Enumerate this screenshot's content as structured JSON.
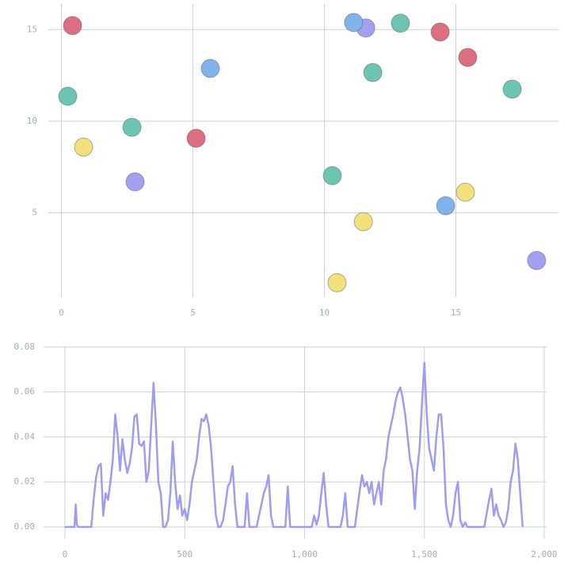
{
  "chart_data": [
    {
      "type": "scatter",
      "xlim": [
        -0.5,
        18.9
      ],
      "ylim": [
        0.4,
        16.4
      ],
      "xticks": [
        0,
        5,
        10,
        15
      ],
      "yticks": [
        5,
        10,
        15
      ],
      "grid": true,
      "series": [
        {
          "color": "#dc6e82",
          "x": [
            0.42,
            5.12,
            14.4,
            15.45
          ],
          "values": [
            15.22,
            9.07,
            14.87,
            13.48
          ]
        },
        {
          "color": "#6cc4b2",
          "x": [
            0.24,
            2.68,
            10.3,
            11.84,
            12.89,
            17.14
          ],
          "values": [
            11.36,
            9.67,
            7.03,
            12.66,
            15.35,
            11.75
          ]
        },
        {
          "color": "#f2e07a",
          "x": [
            0.84,
            10.48,
            11.48,
            15.36
          ],
          "values": [
            8.59,
            1.19,
            4.52,
            6.13
          ]
        },
        {
          "color": "#a3a0f2",
          "x": [
            2.8,
            11.57,
            18.07
          ],
          "values": [
            6.69,
            15.09,
            2.4
          ]
        },
        {
          "color": "#80b2ec",
          "x": [
            5.66,
            11.11,
            14.61
          ],
          "values": [
            12.88,
            15.39,
            5.39
          ]
        }
      ]
    },
    {
      "type": "line",
      "xlim": [
        -89,
        2010
      ],
      "ylim": [
        -0.0053,
        0.0803
      ],
      "xticks": [
        0,
        500,
        {
          "value": 1000,
          "label": "1,000"
        },
        {
          "value": 1500,
          "label": "1,500"
        },
        {
          "value": 2000,
          "label": "2,000"
        }
      ],
      "yticks": [
        {
          "value": 0,
          "label": "0.00"
        },
        {
          "value": 0.02,
          "label": "0.02"
        },
        {
          "value": 0.04,
          "label": "0.04"
        },
        {
          "value": 0.06,
          "label": "0.06"
        },
        {
          "value": 0.08,
          "label": "0.08"
        }
      ],
      "grid": true,
      "series": [
        {
          "color": "#a09cee",
          "x": [
            0,
            40,
            45,
            50,
            55,
            110,
            120,
            130,
            140,
            150,
            160,
            170,
            180,
            190,
            200,
            210,
            220,
            230,
            240,
            250,
            260,
            270,
            280,
            290,
            300,
            310,
            320,
            330,
            340,
            350,
            360,
            370,
            380,
            390,
            400,
            410,
            420,
            430,
            440,
            450,
            460,
            470,
            480,
            490,
            500,
            510,
            520,
            530,
            540,
            550,
            560,
            570,
            580,
            590,
            600,
            610,
            620,
            630,
            640,
            650,
            660,
            670,
            680,
            690,
            700,
            710,
            720,
            750,
            760,
            770,
            800,
            810,
            820,
            830,
            840,
            850,
            860,
            870,
            920,
            930,
            940,
            1030,
            1040,
            1050,
            1060,
            1070,
            1080,
            1090,
            1100,
            1150,
            1160,
            1170,
            1180,
            1210,
            1220,
            1230,
            1240,
            1250,
            1260,
            1270,
            1280,
            1290,
            1300,
            1310,
            1320,
            1330,
            1340,
            1350,
            1360,
            1370,
            1380,
            1390,
            1400,
            1410,
            1420,
            1430,
            1440,
            1450,
            1460,
            1470,
            1480,
            1490,
            1500,
            1510,
            1520,
            1530,
            1540,
            1550,
            1560,
            1570,
            1580,
            1590,
            1600,
            1610,
            1620,
            1630,
            1640,
            1650,
            1660,
            1670,
            1680,
            1750,
            1760,
            1770,
            1780,
            1790,
            1800,
            1810,
            1820,
            1830,
            1840,
            1850,
            1860,
            1870,
            1880,
            1890,
            1900,
            1910
          ],
          "values": [
            0,
            0,
            0.01,
            0.001,
            0,
            0,
            0.012,
            0.022,
            0.027,
            0.028,
            0.005,
            0.015,
            0.012,
            0.02,
            0.03,
            0.05,
            0.04,
            0.025,
            0.039,
            0.03,
            0.024,
            0.028,
            0.035,
            0.049,
            0.05,
            0.037,
            0.036,
            0.038,
            0.02,
            0.025,
            0.045,
            0.064,
            0.045,
            0.02,
            0.015,
            0,
            0,
            0.003,
            0.015,
            0.038,
            0.02,
            0.008,
            0.014,
            0.005,
            0.008,
            0.003,
            0.01,
            0.02,
            0.025,
            0.03,
            0.04,
            0.048,
            0.047,
            0.05,
            0.045,
            0.035,
            0.02,
            0.005,
            0,
            0,
            0.003,
            0.01,
            0.018,
            0.02,
            0.027,
            0.01,
            0,
            0,
            0.015,
            0,
            0,
            0.005,
            0.01,
            0.015,
            0.018,
            0.023,
            0.005,
            0,
            0,
            0.018,
            0,
            0,
            0.005,
            0.001,
            0.005,
            0.015,
            0.024,
            0.01,
            0,
            0,
            0.005,
            0.015,
            0,
            0,
            0.008,
            0.016,
            0.023,
            0.018,
            0.02,
            0.015,
            0.02,
            0.01,
            0.015,
            0.02,
            0.01,
            0.025,
            0.03,
            0.04,
            0.045,
            0.05,
            0.056,
            0.06,
            0.062,
            0.057,
            0.05,
            0.04,
            0.03,
            0.025,
            0.008,
            0.025,
            0.035,
            0.055,
            0.073,
            0.05,
            0.035,
            0.03,
            0.025,
            0.04,
            0.05,
            0.05,
            0.035,
            0.01,
            0.003,
            0,
            0.005,
            0.015,
            0.02,
            0.003,
            0,
            0.002,
            0,
            0,
            0.006,
            0.012,
            0.017,
            0.005,
            0.01,
            0.005,
            0.003,
            0,
            0.002,
            0.008,
            0.02,
            0.025,
            0.037,
            0.03,
            0.015,
            0
          ]
        }
      ]
    }
  ]
}
